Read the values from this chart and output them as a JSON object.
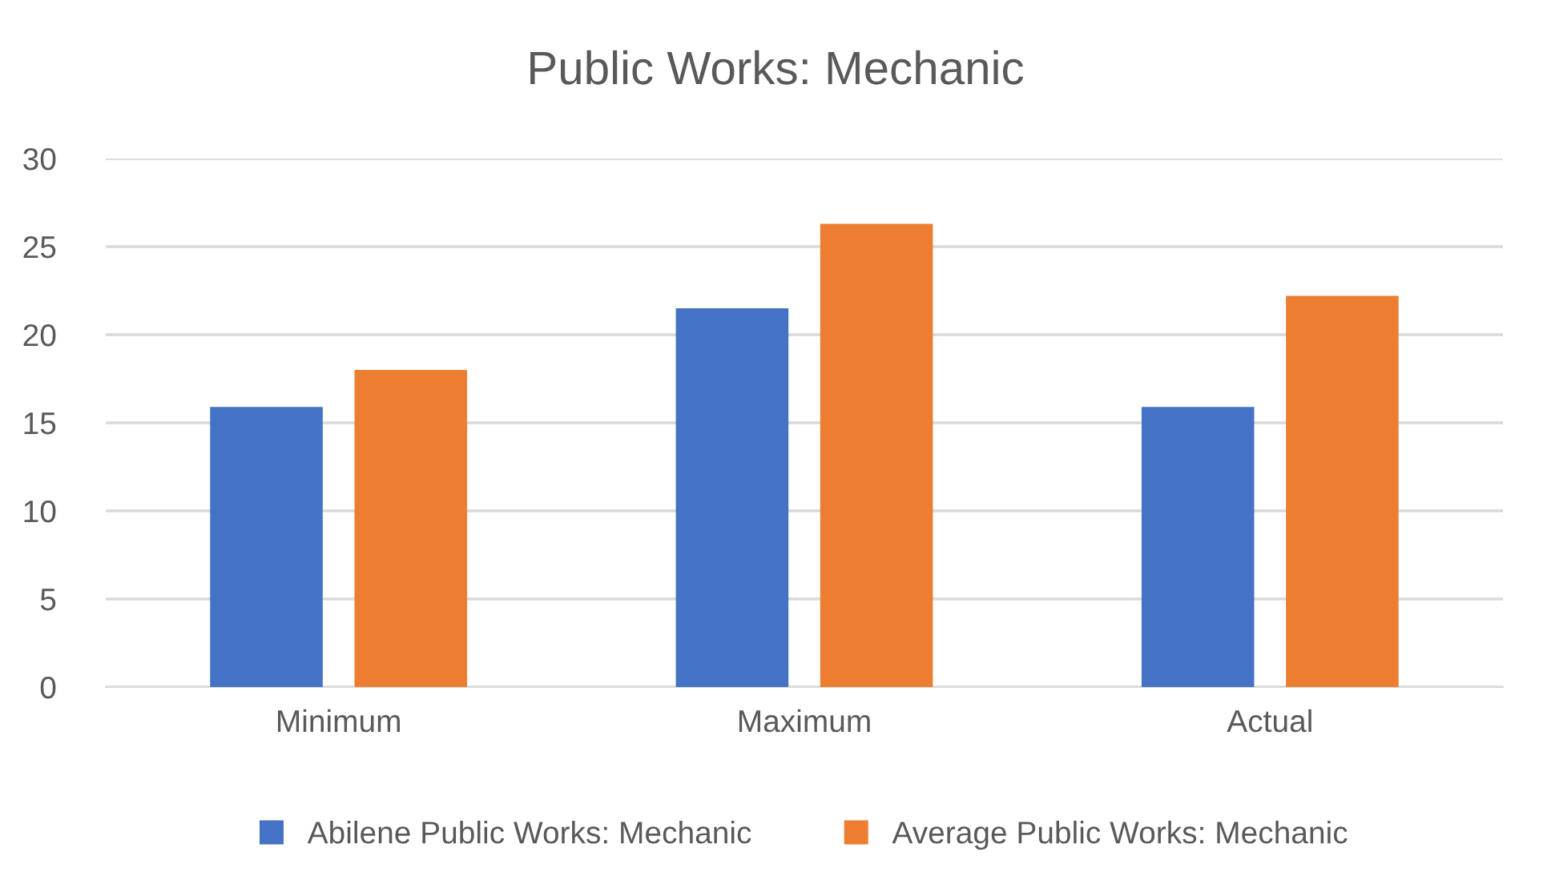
{
  "chart_data": {
    "type": "bar",
    "title": "Public Works: Mechanic",
    "categories": [
      "Minimum",
      "Maximum",
      "Actual"
    ],
    "series": [
      {
        "name": "Abilene Public Works: Mechanic",
        "color": "#4472c4",
        "values": [
          15.9,
          21.5,
          15.9
        ]
      },
      {
        "name": "Average Public Works: Mechanic",
        "color": "#ed7d31",
        "values": [
          18.0,
          26.3,
          22.2
        ]
      }
    ],
    "ylim": [
      0,
      30
    ],
    "yticks": [
      0,
      5,
      10,
      15,
      20,
      25,
      30
    ],
    "grid": "y",
    "legend": "bottom"
  }
}
